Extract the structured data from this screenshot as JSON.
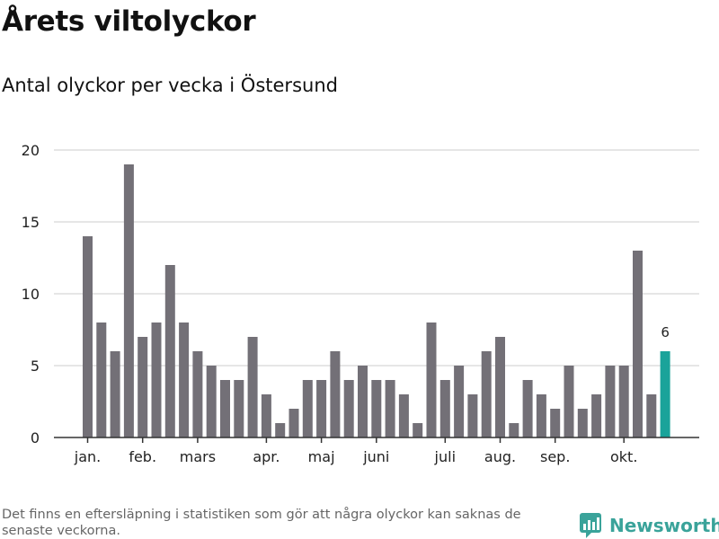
{
  "header": {
    "title": "Årets viltolyckor",
    "subtitle": "Antal olyckor per vecka i Östersund"
  },
  "footer": {
    "note": "Det finns en eftersläpning i statistiken som gör att några olyckor kan saknas de senaste veckorna.",
    "brand": "Newsworthy"
  },
  "colors": {
    "bar": "#737077",
    "highlight": "#1aa39a",
    "grid": "#dddddd",
    "axis": "#333333",
    "brand": "#3aa39a"
  },
  "chart_data": {
    "type": "bar",
    "title": "Årets viltolyckor",
    "subtitle": "Antal olyckor per vecka i Östersund",
    "xlabel": "",
    "ylabel": "",
    "ylim": [
      0,
      20
    ],
    "yticks": [
      0,
      5,
      10,
      15,
      20
    ],
    "weeks": [
      1,
      2,
      3,
      4,
      5,
      6,
      7,
      8,
      9,
      10,
      11,
      12,
      13,
      14,
      15,
      16,
      17,
      18,
      19,
      20,
      21,
      22,
      23,
      24,
      25,
      26,
      27,
      28,
      29,
      30,
      31,
      32,
      33,
      34,
      35,
      36,
      37,
      38,
      39,
      40,
      41,
      42,
      43
    ],
    "values": [
      14,
      8,
      6,
      19,
      7,
      8,
      12,
      8,
      6,
      5,
      4,
      4,
      7,
      3,
      1,
      2,
      4,
      4,
      6,
      4,
      5,
      4,
      4,
      3,
      1,
      8,
      4,
      5,
      3,
      6,
      7,
      1,
      4,
      3,
      2,
      5,
      2,
      3,
      5,
      5,
      13,
      3,
      6
    ],
    "highlight_index": 42,
    "highlight_label": "6",
    "month_labels": [
      {
        "label": "jan.",
        "week": 1
      },
      {
        "label": "feb.",
        "week": 5
      },
      {
        "label": "mars",
        "week": 9
      },
      {
        "label": "apr.",
        "week": 14
      },
      {
        "label": "maj",
        "week": 18
      },
      {
        "label": "juni",
        "week": 22
      },
      {
        "label": "juli",
        "week": 27
      },
      {
        "label": "aug.",
        "week": 31
      },
      {
        "label": "sep.",
        "week": 35
      },
      {
        "label": "okt.",
        "week": 40
      }
    ]
  }
}
